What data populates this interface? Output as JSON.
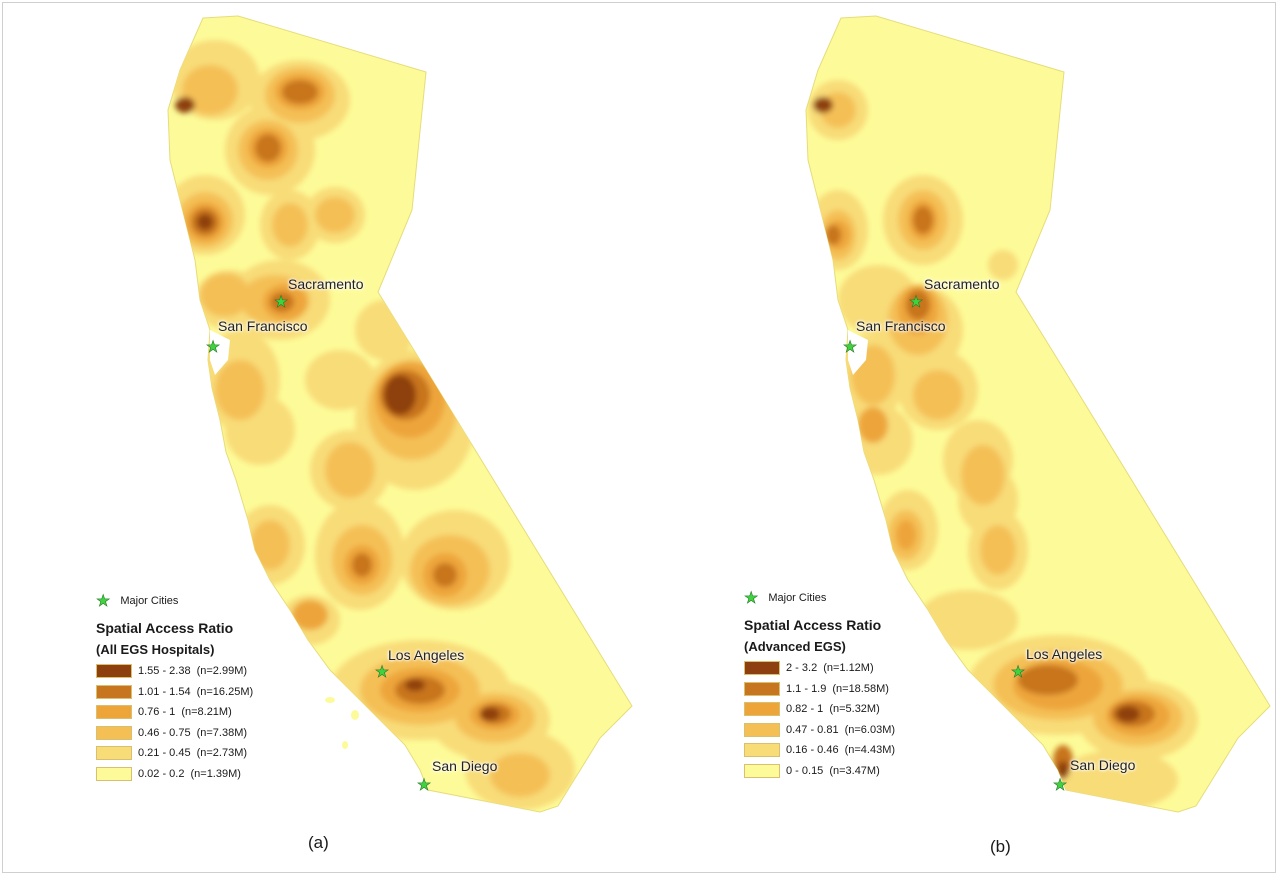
{
  "legend_colors": [
    "#8e3f0f",
    "#c8751f",
    "#eda53a",
    "#f4c056",
    "#f8dc78",
    "#fdfb99"
  ],
  "city_star_color": "#3fd33f",
  "panels": [
    {
      "label": "(a)",
      "legend": {
        "major_cities_label": "Major Cities",
        "title_line1": "Spatial Access Ratio",
        "title_line2": "(All EGS Hospitals)",
        "entries": [
          {
            "range": "1.55 - 2.38",
            "count": "(n=2.99M)"
          },
          {
            "range": "1.01 - 1.54",
            "count": "(n=16.25M)"
          },
          {
            "range": "0.76 - 1",
            "count": "(n=8.21M)"
          },
          {
            "range": "0.46 - 0.75",
            "count": "(n=7.38M)"
          },
          {
            "range": "0.21 - 0.45",
            "count": "(n=2.73M)"
          },
          {
            "range": "0.02 - 0.2",
            "count": "(n=1.39M)"
          }
        ]
      },
      "cities": [
        "Sacramento",
        "San Francisco",
        "Los Angeles",
        "San Diego"
      ]
    },
    {
      "label": "(b)",
      "legend": {
        "major_cities_label": "Major Cities",
        "title_line1": "Spatial Access Ratio",
        "title_line2": "(Advanced EGS)",
        "entries": [
          {
            "range": "2 - 3.2",
            "count": "(n=1.12M)"
          },
          {
            "range": "1.1 - 1.9",
            "count": "(n=18.58M)"
          },
          {
            "range": "0.82 - 1",
            "count": "(n=5.32M)"
          },
          {
            "range": "0.47 - 0.81",
            "count": "(n=6.03M)"
          },
          {
            "range": "0.16 - 0.46",
            "count": "(n=4.43M)"
          },
          {
            "range": "0 - 0.15",
            "count": "(n=3.47M)"
          }
        ]
      },
      "cities": [
        "Sacramento",
        "San Francisco",
        "Los Angeles",
        "San Diego"
      ]
    }
  ]
}
